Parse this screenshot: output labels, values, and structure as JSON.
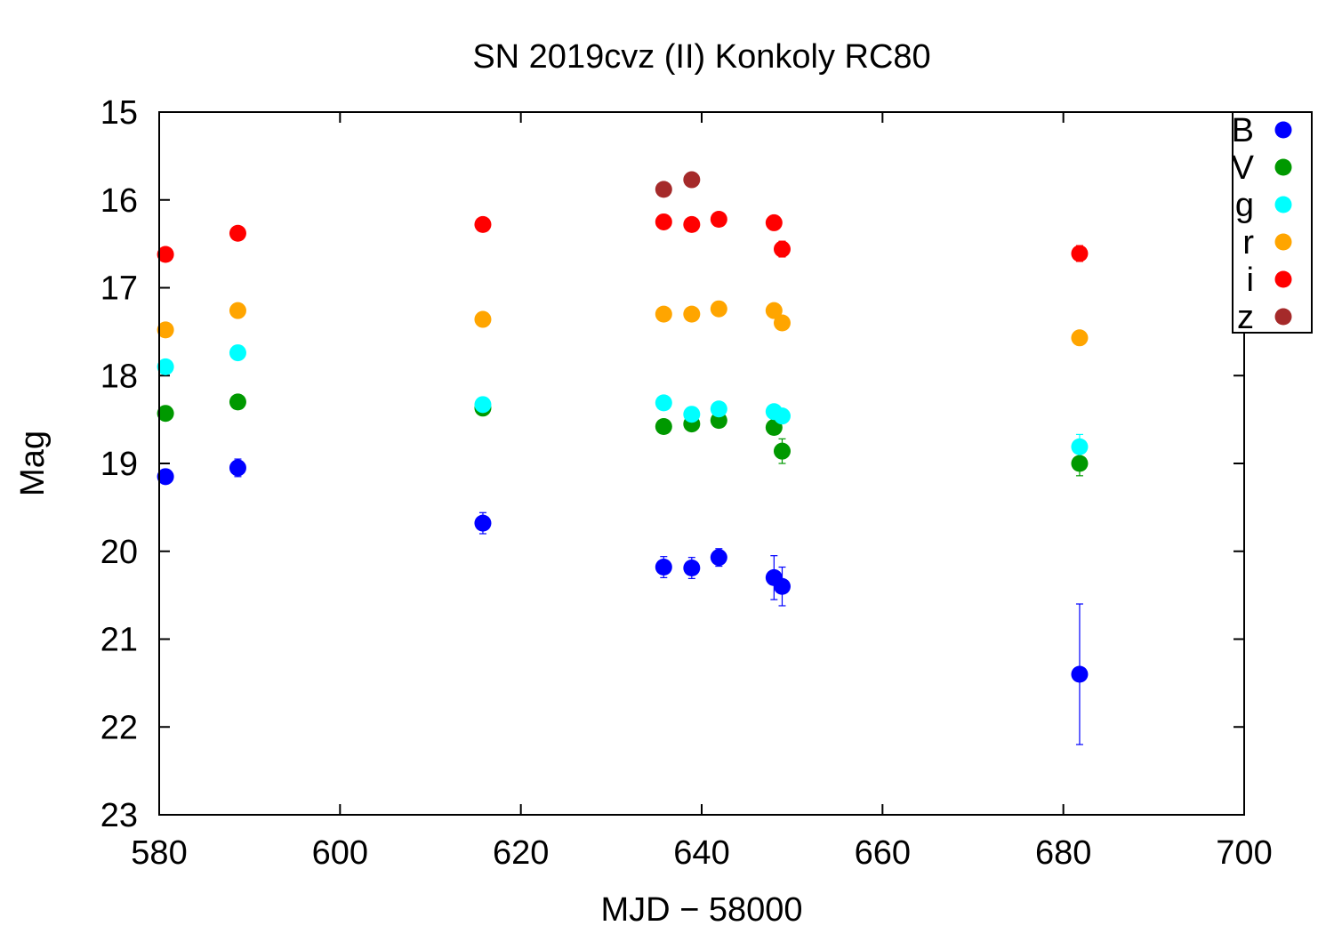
{
  "chart_data": {
    "type": "scatter",
    "title": "SN 2019cvz (II) Konkoly RC80",
    "xlabel": "MJD − 58000",
    "ylabel": "Mag",
    "xlim": [
      580,
      700
    ],
    "ylim": [
      15,
      23
    ],
    "y_inverted": true,
    "x_ticks": [
      "580",
      "600",
      "620",
      "640",
      "660",
      "680",
      "700"
    ],
    "y_ticks": [
      "15",
      "16",
      "17",
      "18",
      "19",
      "20",
      "21",
      "22",
      "23"
    ],
    "grid": false,
    "legend_position": "top-right",
    "series": [
      {
        "name": "B",
        "color": "#0000ff",
        "points": [
          {
            "x": 580.7,
            "y": 19.15,
            "err": 0.08
          },
          {
            "x": 588.7,
            "y": 19.05,
            "err": 0.1
          },
          {
            "x": 615.8,
            "y": 19.68,
            "err": 0.12
          },
          {
            "x": 635.8,
            "y": 20.18,
            "err": 0.12
          },
          {
            "x": 638.9,
            "y": 20.19,
            "err": 0.12
          },
          {
            "x": 641.9,
            "y": 20.07,
            "err": 0.1
          },
          {
            "x": 648.0,
            "y": 20.3,
            "err": 0.25
          },
          {
            "x": 648.9,
            "y": 20.4,
            "err": 0.22
          },
          {
            "x": 681.8,
            "y": 21.4,
            "err": 0.8
          }
        ]
      },
      {
        "name": "V",
        "color": "#009900",
        "points": [
          {
            "x": 580.7,
            "y": 18.43,
            "err": 0.04
          },
          {
            "x": 588.7,
            "y": 18.3,
            "err": 0.04
          },
          {
            "x": 615.8,
            "y": 18.37,
            "err": 0.05
          },
          {
            "x": 635.8,
            "y": 18.58,
            "err": 0.05
          },
          {
            "x": 638.9,
            "y": 18.55,
            "err": 0.05
          },
          {
            "x": 641.9,
            "y": 18.51,
            "err": 0.05
          },
          {
            "x": 648.0,
            "y": 18.59,
            "err": 0.05
          },
          {
            "x": 648.9,
            "y": 18.86,
            "err": 0.14
          },
          {
            "x": 681.8,
            "y": 19.0,
            "err": 0.14
          }
        ]
      },
      {
        "name": "g",
        "color": "#00ffff",
        "points": [
          {
            "x": 580.7,
            "y": 17.9,
            "err": 0.04
          },
          {
            "x": 588.7,
            "y": 17.74,
            "err": 0.04
          },
          {
            "x": 615.8,
            "y": 18.33,
            "err": 0.05
          },
          {
            "x": 635.8,
            "y": 18.31,
            "err": 0.05
          },
          {
            "x": 638.9,
            "y": 18.44,
            "err": 0.05
          },
          {
            "x": 641.9,
            "y": 18.38,
            "err": 0.05
          },
          {
            "x": 648.0,
            "y": 18.41,
            "err": 0.06
          },
          {
            "x": 648.9,
            "y": 18.46,
            "err": 0.07
          },
          {
            "x": 681.8,
            "y": 18.81,
            "err": 0.14
          }
        ]
      },
      {
        "name": "r",
        "color": "#ffa500",
        "points": [
          {
            "x": 580.7,
            "y": 17.48,
            "err": 0.03
          },
          {
            "x": 588.7,
            "y": 17.26,
            "err": 0.03
          },
          {
            "x": 615.8,
            "y": 17.36,
            "err": 0.03
          },
          {
            "x": 635.8,
            "y": 17.3,
            "err": 0.03
          },
          {
            "x": 638.9,
            "y": 17.3,
            "err": 0.03
          },
          {
            "x": 641.9,
            "y": 17.24,
            "err": 0.03
          },
          {
            "x": 648.0,
            "y": 17.26,
            "err": 0.03
          },
          {
            "x": 648.9,
            "y": 17.4,
            "err": 0.04
          },
          {
            "x": 681.8,
            "y": 17.57,
            "err": 0.04
          }
        ]
      },
      {
        "name": "i",
        "color": "#ff0000",
        "points": [
          {
            "x": 580.7,
            "y": 16.62,
            "err": 0.03
          },
          {
            "x": 588.7,
            "y": 16.38,
            "err": 0.03
          },
          {
            "x": 615.8,
            "y": 16.28,
            "err": 0.03
          },
          {
            "x": 635.8,
            "y": 16.25,
            "err": 0.03
          },
          {
            "x": 638.9,
            "y": 16.28,
            "err": 0.03
          },
          {
            "x": 641.9,
            "y": 16.22,
            "err": 0.03
          },
          {
            "x": 648.0,
            "y": 16.26,
            "err": 0.03
          },
          {
            "x": 648.9,
            "y": 16.56,
            "err": 0.09
          },
          {
            "x": 681.8,
            "y": 16.61,
            "err": 0.09
          }
        ]
      },
      {
        "name": "z",
        "color": "#a52a2a",
        "points": [
          {
            "x": 635.8,
            "y": 15.88,
            "err": 0.05
          },
          {
            "x": 638.9,
            "y": 15.77,
            "err": 0.05
          }
        ]
      }
    ]
  }
}
